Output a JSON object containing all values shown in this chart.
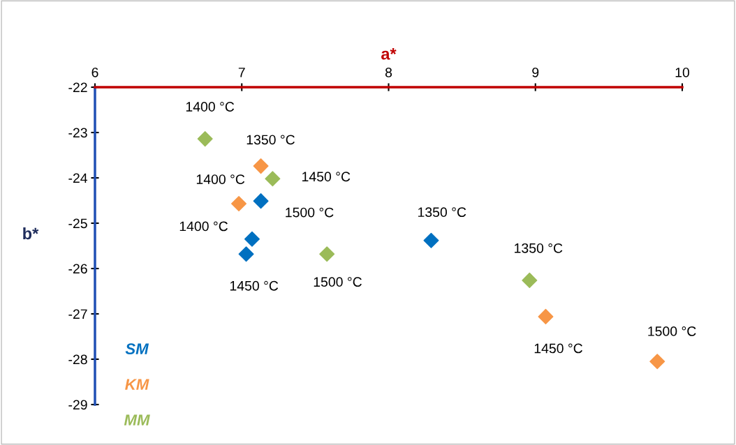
{
  "chart_data": {
    "type": "scatter",
    "xlabel": "a*",
    "ylabel": "b*",
    "xlim": [
      6,
      10
    ],
    "xticks": [
      6,
      7,
      8,
      9,
      10
    ],
    "ylim": [
      -29,
      -22
    ],
    "yticks": [
      -29,
      -28,
      -27,
      -26,
      -25,
      -24,
      -23,
      -22
    ],
    "grid": false,
    "legend": "bottom left",
    "marker": "diamond",
    "series": [
      {
        "name": "SM",
        "color": "#0070c0",
        "x": [
          7.13,
          7.07,
          7.03,
          8.29
        ],
        "values": [
          -24.51,
          -25.35,
          -25.68,
          -25.38
        ]
      },
      {
        "name": "KM",
        "color": "#f79646",
        "x": [
          7.13,
          6.98,
          9.07,
          9.83
        ],
        "values": [
          -23.74,
          -24.57,
          -27.06,
          -28.05
        ]
      },
      {
        "name": "MM",
        "color": "#9bbb59",
        "x": [
          6.75,
          7.21,
          7.58,
          8.96
        ],
        "values": [
          -23.14,
          -24.02,
          -25.68,
          -26.26
        ]
      }
    ],
    "annotations": [
      {
        "text": "1500 °C",
        "x": 7.13,
        "y": -24.51
      },
      {
        "text": "1400 °C",
        "x": 7.07,
        "y": -25.35
      },
      {
        "text": "1450 °C",
        "x": 7.03,
        "y": -25.68
      },
      {
        "text": "1350 °C",
        "x": 8.29,
        "y": -25.38
      },
      {
        "text": "1350 °C",
        "x": 7.13,
        "y": -23.74
      },
      {
        "text": "1400 °C",
        "x": 6.98,
        "y": -24.57
      },
      {
        "text": "1450 °C",
        "x": 9.07,
        "y": -27.06
      },
      {
        "text": "1500 °C",
        "x": 9.83,
        "y": -28.05
      },
      {
        "text": "1400 °C",
        "x": 6.75,
        "y": -23.14
      },
      {
        "text": "1450 °C",
        "x": 7.21,
        "y": -24.02
      },
      {
        "text": "1500 °C",
        "x": 7.58,
        "y": -25.68
      },
      {
        "text": "1350 °C",
        "x": 8.96,
        "y": -26.26
      }
    ]
  }
}
